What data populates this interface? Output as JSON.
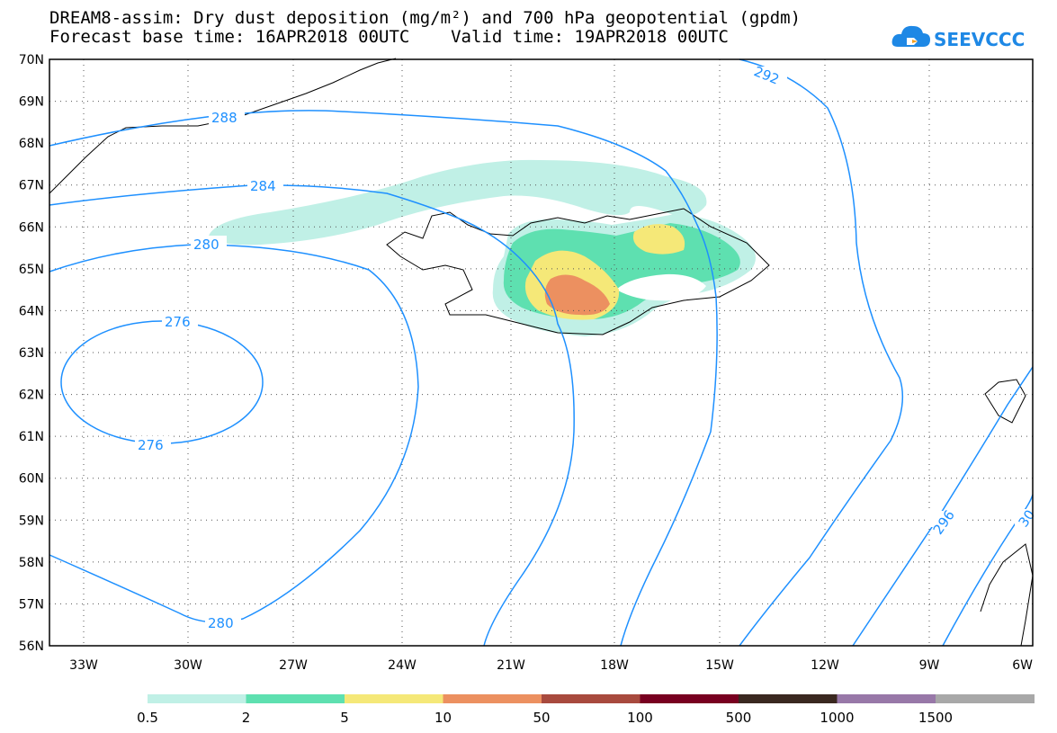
{
  "header": {
    "title_line1": "DREAM8-assim: Dry dust deposition (mg/m²) and 700 hPa geopotential (gpdm)",
    "title_line2": "Forecast base time: 16APR2018 00UTC    Valid time: 19APR2018 00UTC"
  },
  "logo": {
    "text": "SEEVCCC",
    "icon": "cloud-icon"
  },
  "map": {
    "lat_labels": [
      "70N",
      "69N",
      "68N",
      "67N",
      "66N",
      "65N",
      "64N",
      "63N",
      "62N",
      "61N",
      "60N",
      "59N",
      "58N",
      "57N",
      "56N"
    ],
    "lon_labels": [
      "33W",
      "30W",
      "27W",
      "24W",
      "21W",
      "18W",
      "15W",
      "12W",
      "9W",
      "6W"
    ],
    "contour_labels": [
      "288",
      "284",
      "280",
      "276",
      "276",
      "280",
      "292",
      "296",
      "30"
    ],
    "contour_color": "#1e90ff"
  },
  "legend": {
    "labels": [
      "0.5",
      "2",
      "5",
      "10",
      "50",
      "100",
      "500",
      "1000",
      "1500"
    ],
    "colors": [
      "#c0f0e6",
      "#5ee0b0",
      "#f5e878",
      "#ec9060",
      "#a84a3e",
      "#780020",
      "#3a2820",
      "#9878a8",
      "#a8a8a8"
    ]
  }
}
